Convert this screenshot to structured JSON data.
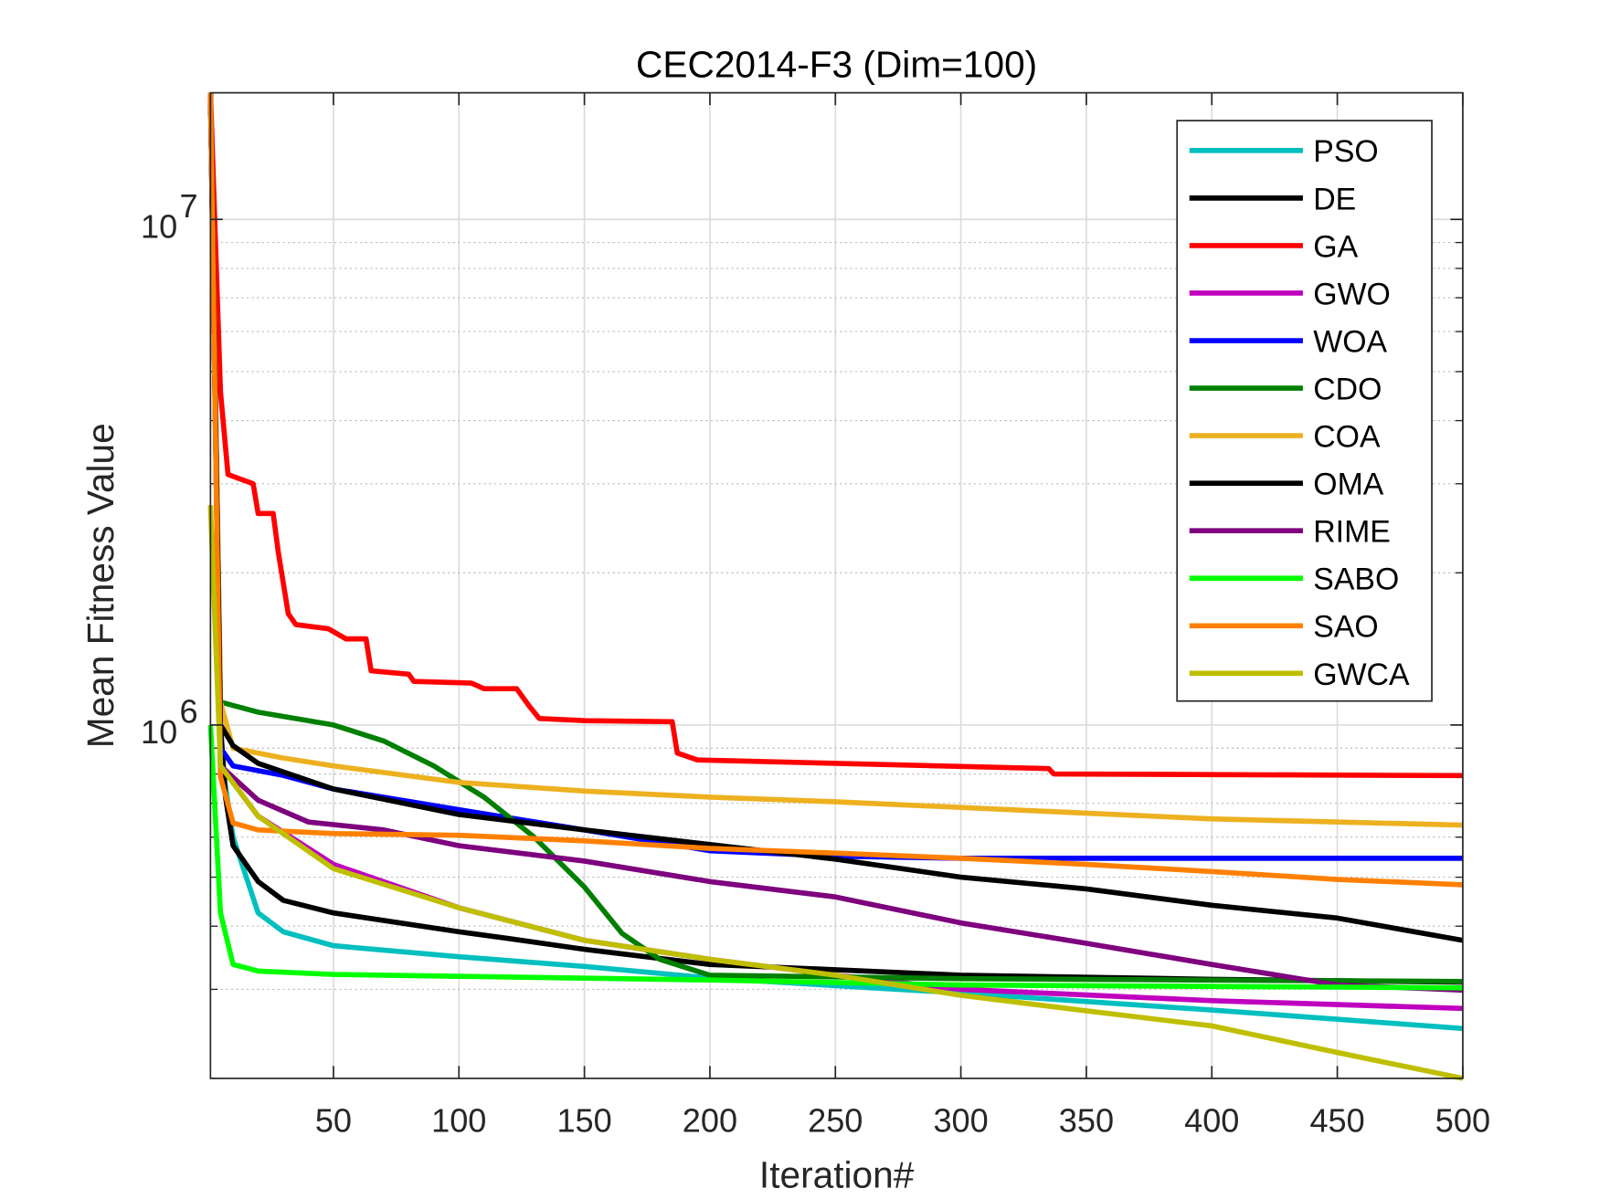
{
  "chart_data": {
    "type": "line",
    "title": "CEC2014-F3 (Dim=100)",
    "xlabel": "Iteration#",
    "ylabel": "Mean Fitness Value",
    "xlim": [
      1,
      500
    ],
    "ylim": [
      200000,
      17800000
    ],
    "yscale": "log",
    "grid": true,
    "legend_position": "top-right",
    "xticks": [
      50,
      100,
      150,
      200,
      250,
      300,
      350,
      400,
      450,
      500
    ],
    "yticks": [
      {
        "value": 1000000,
        "base": "10",
        "exp": "6"
      },
      {
        "value": 10000000,
        "base": "10",
        "exp": "7"
      }
    ],
    "series": [
      {
        "name": "PSO",
        "color": "#00BFBF",
        "x": [
          1,
          5,
          10,
          20,
          30,
          50,
          100,
          150,
          200,
          250,
          300,
          400,
          500
        ],
        "y": [
          17800000,
          880000,
          600000,
          425000,
          390000,
          366000,
          348000,
          333000,
          316000,
          305000,
          295000,
          273000,
          251000
        ]
      },
      {
        "name": "DE",
        "color": "#000000",
        "x": [
          1,
          5,
          7,
          10,
          20,
          30,
          50,
          100,
          120,
          150,
          200,
          250,
          300,
          400,
          500
        ],
        "y": [
          17800000,
          1000000,
          720000,
          577000,
          490000,
          450000,
          425000,
          390000,
          378000,
          360000,
          336000,
          328000,
          320000,
          314000,
          310000
        ]
      },
      {
        "name": "GA",
        "color": "#FF0000",
        "x": [
          1,
          5,
          8,
          18,
          20,
          26,
          28,
          32,
          35,
          48,
          55,
          63,
          65,
          80,
          82,
          105,
          110,
          123,
          128,
          132,
          150,
          185,
          187,
          195,
          250,
          335,
          337,
          500
        ],
        "y": [
          17800000,
          4560000,
          3130000,
          3000000,
          2620000,
          2620000,
          2200000,
          1660000,
          1580000,
          1550000,
          1480000,
          1480000,
          1280000,
          1260000,
          1220000,
          1210000,
          1180000,
          1180000,
          1090000,
          1030000,
          1020000,
          1015000,
          880000,
          853000,
          840000,
          820000,
          800000,
          794000
        ]
      },
      {
        "name": "GWO",
        "color": "#BF00BF",
        "x": [
          1,
          5,
          20,
          50,
          100,
          150,
          200,
          250,
          300,
          400,
          500
        ],
        "y": [
          17800000,
          830000,
          660000,
          530000,
          435000,
          375000,
          344000,
          320000,
          300000,
          285000,
          275000
        ]
      },
      {
        "name": "WOA",
        "color": "#0000FF",
        "x": [
          1,
          5,
          10,
          30,
          50,
          100,
          150,
          200,
          250,
          300,
          500
        ],
        "y": [
          17800000,
          900000,
          830000,
          795000,
          747000,
          680000,
          620000,
          564000,
          550000,
          545000,
          545000
        ]
      },
      {
        "name": "CDO",
        "color": "#007F00",
        "x": [
          1,
          5,
          20,
          50,
          70,
          90,
          110,
          130,
          150,
          165,
          180,
          200,
          300,
          500
        ],
        "y": [
          17800000,
          1110000,
          1060000,
          1000000,
          930000,
          830000,
          720000,
          600000,
          478000,
          387000,
          344000,
          320000,
          315000,
          311000
        ]
      },
      {
        "name": "COA",
        "color": "#EDB120",
        "x": [
          1,
          5,
          10,
          30,
          50,
          100,
          150,
          200,
          250,
          300,
          400,
          500
        ],
        "y": [
          17800000,
          1110000,
          900000,
          860000,
          830000,
          770000,
          740000,
          720000,
          705000,
          687000,
          652000,
          634000
        ]
      },
      {
        "name": "OMA",
        "color": "#000000",
        "x": [
          1,
          5,
          10,
          20,
          50,
          100,
          150,
          200,
          250,
          300,
          350,
          400,
          450,
          500
        ],
        "y": [
          17800000,
          1000000,
          910000,
          840000,
          747000,
          665000,
          620000,
          580000,
          543000,
          500000,
          474000,
          440000,
          415000,
          375000
        ]
      },
      {
        "name": "RIME",
        "color": "#7E007E",
        "x": [
          1,
          5,
          20,
          40,
          70,
          100,
          150,
          200,
          250,
          300,
          350,
          400,
          450,
          500
        ],
        "y": [
          17800000,
          830000,
          710000,
          643000,
          620000,
          577000,
          538000,
          490000,
          457000,
          406000,
          370000,
          336000,
          306000,
          299000
        ]
      },
      {
        "name": "SABO",
        "color": "#00FF00",
        "x": [
          1,
          5,
          10,
          20,
          50,
          200,
          300,
          500
        ],
        "y": [
          1000000,
          425000,
          336000,
          326000,
          321000,
          313000,
          306000,
          302000
        ]
      },
      {
        "name": "SAO",
        "color": "#FF8000",
        "x": [
          1,
          5,
          10,
          20,
          50,
          100,
          150,
          200,
          250,
          300,
          350,
          400,
          450,
          500
        ],
        "y": [
          17800000,
          790000,
          640000,
          620000,
          610000,
          605000,
          590000,
          570000,
          558000,
          545000,
          530000,
          513000,
          495000,
          483000
        ]
      },
      {
        "name": "GWCA",
        "color": "#BFBF00",
        "x": [
          1,
          5,
          20,
          50,
          100,
          150,
          200,
          250,
          300,
          350,
          400,
          450,
          500
        ],
        "y": [
          2720000,
          830000,
          660000,
          520000,
          435000,
          375000,
          344000,
          320000,
          292000,
          272000,
          254000,
          225000,
          200000
        ]
      }
    ]
  }
}
